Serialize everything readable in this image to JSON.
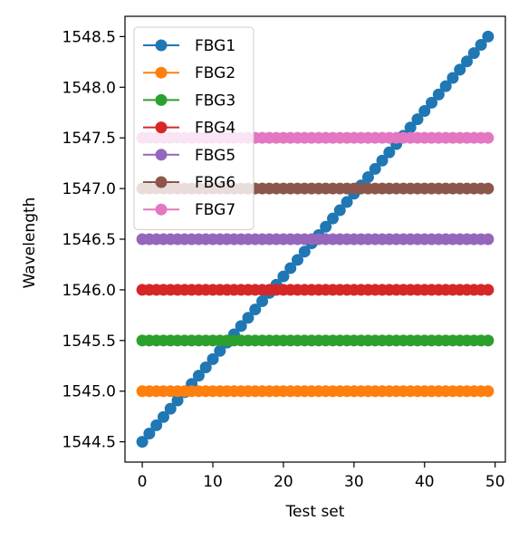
{
  "chart_data": {
    "type": "line",
    "title": "",
    "xlabel": "Test set",
    "ylabel": "Wavelength",
    "xlim": [
      -2.45,
      51.45
    ],
    "ylim": [
      1544.3,
      1548.7
    ],
    "xticks": [
      0,
      10,
      20,
      30,
      40,
      50
    ],
    "xtick_labels": [
      "0",
      "10",
      "20",
      "30",
      "40",
      "50"
    ],
    "yticks": [
      1544.5,
      1545.0,
      1545.5,
      1546.0,
      1546.5,
      1547.0,
      1547.5,
      1548.0,
      1548.5
    ],
    "ytick_labels": [
      "1544.5",
      "1545.0",
      "1545.5",
      "1546.0",
      "1546.5",
      "1547.0",
      "1547.5",
      "1548.0",
      "1548.5"
    ],
    "grid": false,
    "legend_position": "top-left",
    "x": [
      0,
      1,
      2,
      3,
      4,
      5,
      6,
      7,
      8,
      9,
      10,
      11,
      12,
      13,
      14,
      15,
      16,
      17,
      18,
      19,
      20,
      21,
      22,
      23,
      24,
      25,
      26,
      27,
      28,
      29,
      30,
      31,
      32,
      33,
      34,
      35,
      36,
      37,
      38,
      39,
      40,
      41,
      42,
      43,
      44,
      45,
      46,
      47,
      48,
      49
    ],
    "series": [
      {
        "name": "FBG1",
        "color": "#1f77b4",
        "start": 1544.5,
        "end": 1548.5
      },
      {
        "name": "FBG2",
        "color": "#ff7f0e",
        "start": 1545.0,
        "end": 1545.0
      },
      {
        "name": "FBG3",
        "color": "#2ca02c",
        "start": 1545.5,
        "end": 1545.5
      },
      {
        "name": "FBG4",
        "color": "#d62728",
        "start": 1546.0,
        "end": 1546.0
      },
      {
        "name": "FBG5",
        "color": "#9467bd",
        "start": 1546.5,
        "end": 1546.5
      },
      {
        "name": "FBG6",
        "color": "#8c564b",
        "start": 1547.0,
        "end": 1547.0
      },
      {
        "name": "FBG7",
        "color": "#e377c2",
        "start": 1547.5,
        "end": 1547.5
      }
    ]
  }
}
